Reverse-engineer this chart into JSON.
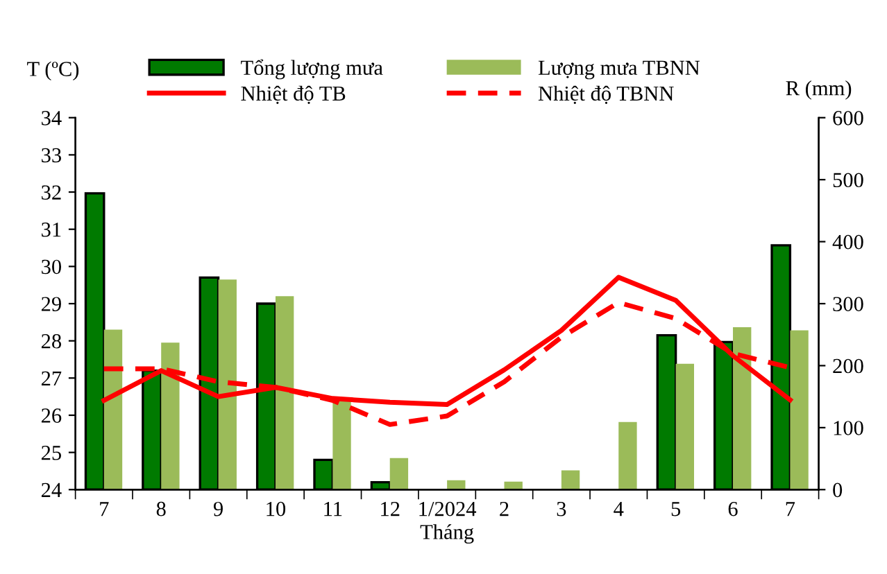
{
  "chart_data": {
    "type": "bar",
    "xlabel": "Tháng",
    "ylabel": "T (ºC)",
    "y2label": "R (mm)",
    "categories": [
      "7",
      "8",
      "9",
      "10",
      "11",
      "12",
      "1/2024",
      "2",
      "3",
      "4",
      "5",
      "6",
      "7"
    ],
    "series": [
      {
        "name": "Tổng lượng mưa",
        "axis": "y2",
        "color": "#007a00",
        "values": [
          478,
          192,
          342,
          300,
          48,
          12,
          null,
          null,
          null,
          null,
          249,
          238,
          394
        ]
      },
      {
        "name": "Lượng mưa TBNN",
        "axis": "y2",
        "color": "#9bbb59",
        "values": [
          258,
          237,
          339,
          312,
          144,
          51,
          15,
          13,
          31,
          109,
          203,
          262,
          257
        ]
      },
      {
        "name": "Nhiệt độ TB",
        "type": "line",
        "color": "#ff0000",
        "line_style": "solid",
        "values": [
          26.4,
          27.2,
          26.5,
          26.75,
          26.45,
          26.35,
          26.29,
          27.22,
          28.28,
          29.71,
          29.09,
          27.6,
          26.41
        ]
      },
      {
        "name": "Nhiệt độ TBNN",
        "type": "line",
        "color": "#ff0000",
        "line_style": "dashed",
        "values": [
          27.25,
          27.25,
          26.9,
          26.75,
          26.4,
          25.75,
          25.98,
          26.9,
          28.1,
          29.03,
          28.6,
          27.66,
          27.28
        ]
      }
    ],
    "ylim": [
      24,
      34
    ],
    "yticks": [
      24,
      25,
      26,
      27,
      28,
      29,
      30,
      31,
      32,
      33,
      34
    ],
    "y2lim": [
      0,
      600
    ],
    "y2ticks": [
      0,
      100,
      200,
      300,
      400,
      500,
      600
    ],
    "grid": false,
    "legend": "top",
    "marker": "none"
  }
}
